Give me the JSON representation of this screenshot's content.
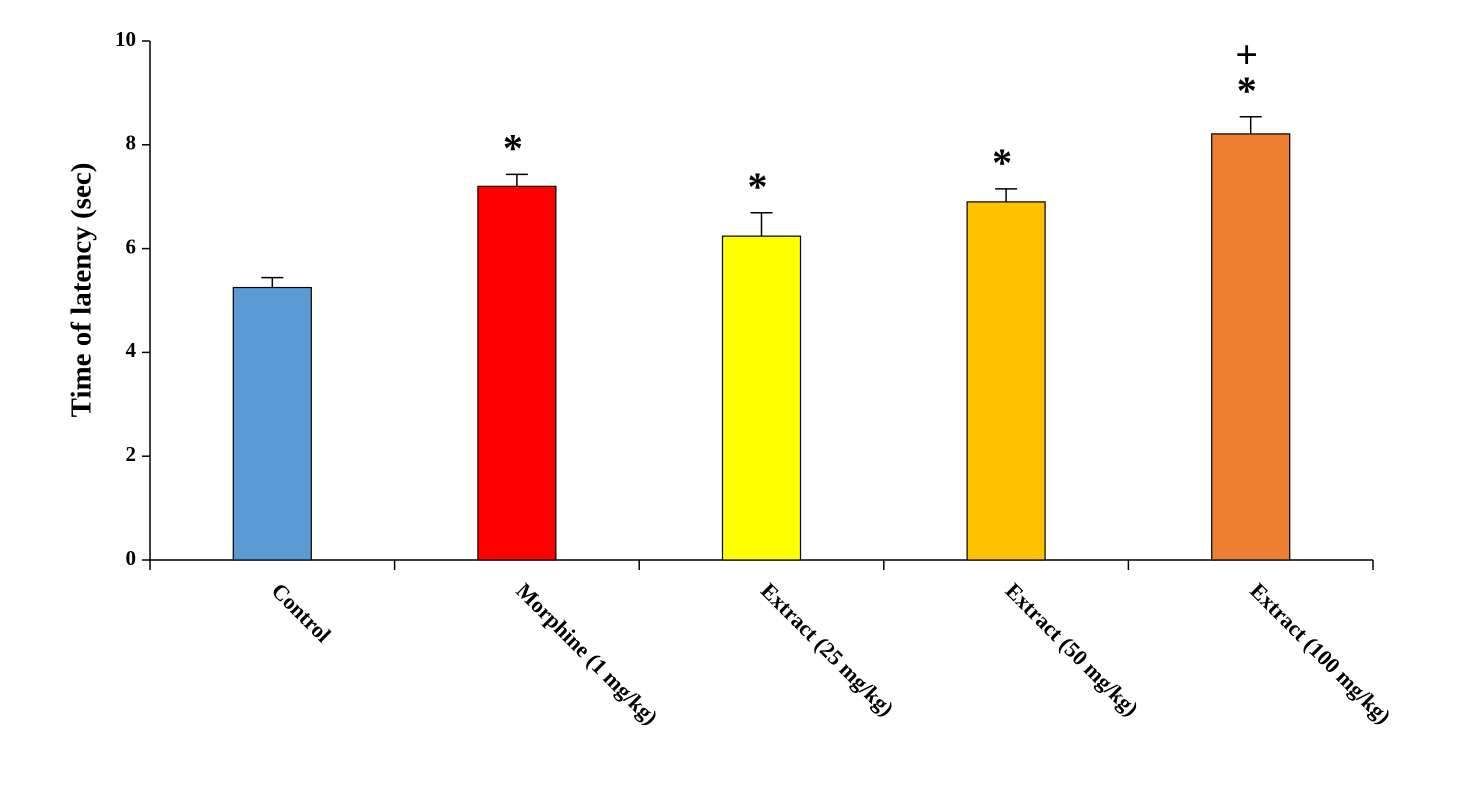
{
  "chart_data": {
    "type": "bar",
    "ylabel": "Time of latency  (sec)",
    "categories": [
      "Control",
      "Morphine (1 mg/kg)",
      "Extract (25 mg/kg)",
      "Extract (50 mg/kg)",
      "Extract (100 mg/kg)"
    ],
    "values": [
      5.25,
      7.2,
      6.24,
      6.9,
      8.21
    ],
    "errors": [
      0.19,
      0.23,
      0.45,
      0.25,
      0.33
    ],
    "colors": [
      "#5b9bd5",
      "#ff0000",
      "#ffff00",
      "#ffc000",
      "#ed7d31"
    ],
    "ylim": [
      0,
      10
    ],
    "yticks": [
      0,
      2,
      4,
      6,
      8,
      10
    ],
    "annotations": [
      {
        "category": "Morphine (1 mg/kg)",
        "text": "*"
      },
      {
        "category": "Extract (25 mg/kg)",
        "text": "*"
      },
      {
        "category": "Extract (50 mg/kg)",
        "text": "*"
      },
      {
        "category": "Extract (100 mg/kg)",
        "text": "*"
      },
      {
        "category": "Extract (100 mg/kg)",
        "text": "+"
      }
    ]
  }
}
